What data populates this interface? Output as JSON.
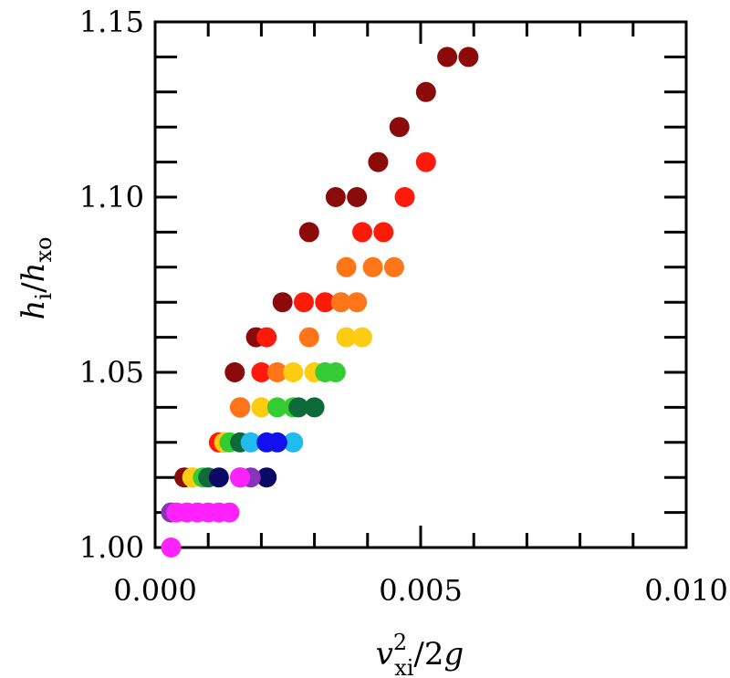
{
  "chart_data": {
    "type": "scatter",
    "xlabel": {
      "main": "v",
      "sup": "2",
      "sub": "xi",
      "rest": "/2",
      "tail": "g"
    },
    "ylabel": {
      "h1": "h",
      "sub1": "i",
      "slash": "/",
      "h2": "h",
      "sub2": "xo"
    },
    "xlim": [
      0.0,
      0.01
    ],
    "ylim": [
      1.0,
      1.15
    ],
    "x_ticks": [
      0.0,
      0.005,
      0.01
    ],
    "x_tick_labels": [
      "0.000",
      "0.005",
      "0.010"
    ],
    "y_ticks": [
      1.0,
      1.05,
      1.1,
      1.15
    ],
    "y_tick_labels": [
      "1.00",
      "1.05",
      "1.10",
      "1.15"
    ],
    "grid": false,
    "series": [
      {
        "color": "#8B0A0A",
        "points": [
          [
            0.00055,
            1.02
          ],
          [
            0.0013,
            1.03
          ],
          [
            0.0016,
            1.04
          ],
          [
            0.0015,
            1.05
          ],
          [
            0.0019,
            1.06
          ],
          [
            0.0024,
            1.07
          ],
          [
            0.0029,
            1.09
          ],
          [
            0.0034,
            1.1
          ],
          [
            0.0038,
            1.1
          ],
          [
            0.0042,
            1.11
          ],
          [
            0.0046,
            1.12
          ],
          [
            0.0051,
            1.13
          ],
          [
            0.0055,
            1.14
          ],
          [
            0.0059,
            1.14
          ]
        ]
      },
      {
        "color": "#FF1A0A",
        "points": [
          [
            0.0012,
            1.03
          ],
          [
            0.0016,
            1.04
          ],
          [
            0.002,
            1.05
          ],
          [
            0.0021,
            1.06
          ],
          [
            0.0028,
            1.07
          ],
          [
            0.0032,
            1.07
          ],
          [
            0.0039,
            1.09
          ],
          [
            0.0043,
            1.09
          ],
          [
            0.0047,
            1.1
          ],
          [
            0.0051,
            1.11
          ]
        ]
      },
      {
        "color": "#FF7518",
        "points": [
          [
            0.0007,
            1.02
          ],
          [
            0.0013,
            1.03
          ],
          [
            0.0016,
            1.04
          ],
          [
            0.0023,
            1.05
          ],
          [
            0.0029,
            1.06
          ],
          [
            0.0035,
            1.07
          ],
          [
            0.0038,
            1.07
          ],
          [
            0.0036,
            1.08
          ],
          [
            0.0041,
            1.08
          ],
          [
            0.0045,
            1.08
          ]
        ]
      },
      {
        "color": "#FFCC11",
        "points": [
          [
            0.0007,
            1.02
          ],
          [
            0.0013,
            1.03
          ],
          [
            0.002,
            1.04
          ],
          [
            0.0026,
            1.05
          ],
          [
            0.003,
            1.05
          ],
          [
            0.0036,
            1.06
          ],
          [
            0.0039,
            1.06
          ]
        ]
      },
      {
        "color": "#33CC33",
        "points": [
          [
            0.0009,
            1.02
          ],
          [
            0.0014,
            1.03
          ],
          [
            0.0023,
            1.04
          ],
          [
            0.0026,
            1.04
          ],
          [
            0.0032,
            1.05
          ],
          [
            0.0034,
            1.05
          ]
        ]
      },
      {
        "color": "#0D6B3A",
        "points": [
          [
            0.001,
            1.02
          ],
          [
            0.0016,
            1.03
          ],
          [
            0.0027,
            1.04
          ],
          [
            0.003,
            1.04
          ]
        ]
      },
      {
        "color": "#22BBEE",
        "points": [
          [
            0.0018,
            1.03
          ],
          [
            0.0026,
            1.03
          ]
        ]
      },
      {
        "color": "#1111EE",
        "points": [
          [
            0.0021,
            1.03
          ],
          [
            0.0023,
            1.03
          ]
        ]
      },
      {
        "color": "#0A0A66",
        "points": [
          [
            0.0012,
            1.02
          ],
          [
            0.0016,
            1.02
          ],
          [
            0.0021,
            1.02
          ]
        ]
      },
      {
        "color": "#8833BB",
        "points": [
          [
            0.0003,
            1.01
          ],
          [
            0.0018,
            1.02
          ]
        ]
      },
      {
        "color": "#FF22FF",
        "points": [
          [
            0.0003,
            1.0
          ],
          [
            0.0004,
            1.01
          ],
          [
            0.0006,
            1.01
          ],
          [
            0.0008,
            1.01
          ],
          [
            0.001,
            1.01
          ],
          [
            0.0012,
            1.01
          ],
          [
            0.0014,
            1.01
          ],
          [
            0.0016,
            1.02
          ]
        ]
      }
    ]
  }
}
